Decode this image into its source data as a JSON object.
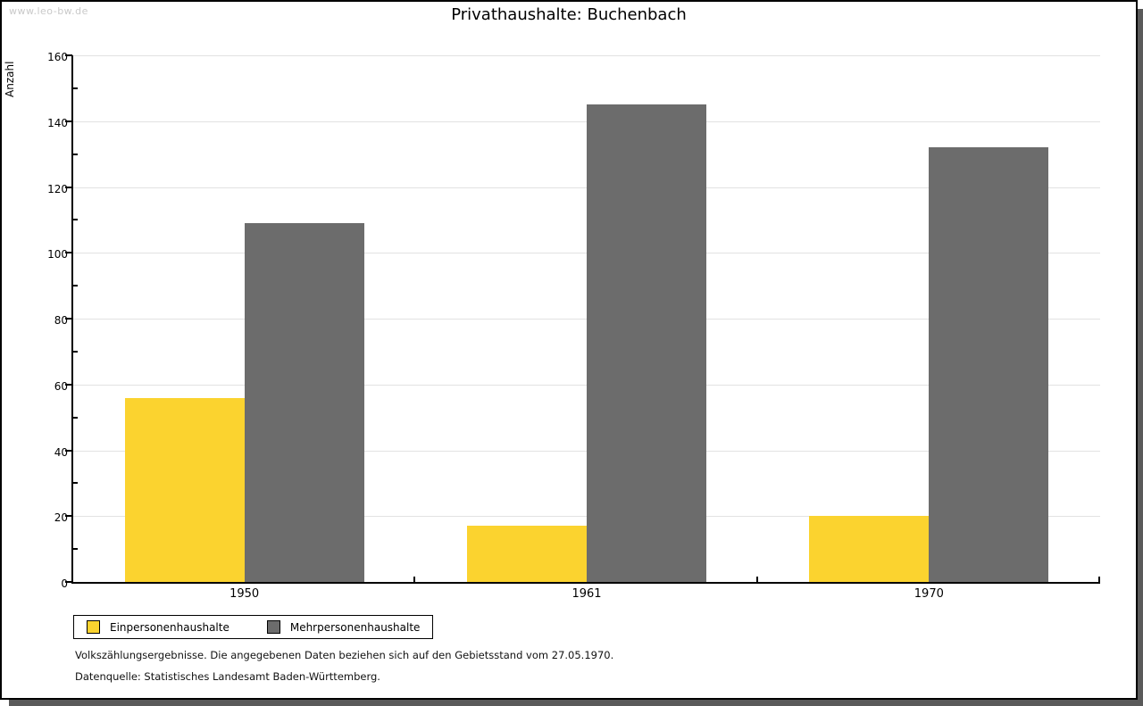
{
  "watermark": "www.leo-bw.de",
  "title": "Privathaushalte: Buchenbach",
  "chart_data": {
    "type": "bar",
    "categories": [
      "1950",
      "1961",
      "1970"
    ],
    "series": [
      {
        "name": "Einpersonenhaushalte",
        "color": "#FBD32F",
        "values": [
          56,
          17,
          20
        ]
      },
      {
        "name": "Mehrpersonenhaushalte",
        "color": "#6C6C6C",
        "values": [
          109,
          145,
          132
        ]
      }
    ],
    "title": "Privathaushalte: Buchenbach",
    "xlabel": "",
    "ylabel": "Anzahl",
    "ylim": [
      0,
      160
    ],
    "ytick_step": 20,
    "minor_tick_step": 10,
    "grid": true,
    "gridline_color": "#e2e2e2",
    "legend_position": "bottom-left"
  },
  "footnotes": [
    "Volkszählungsergebnisse. Die angegebenen Daten beziehen sich auf den Gebietsstand vom 27.05.1970.",
    "Datenquelle: Statistisches Landesamt Baden-Württemberg."
  ]
}
